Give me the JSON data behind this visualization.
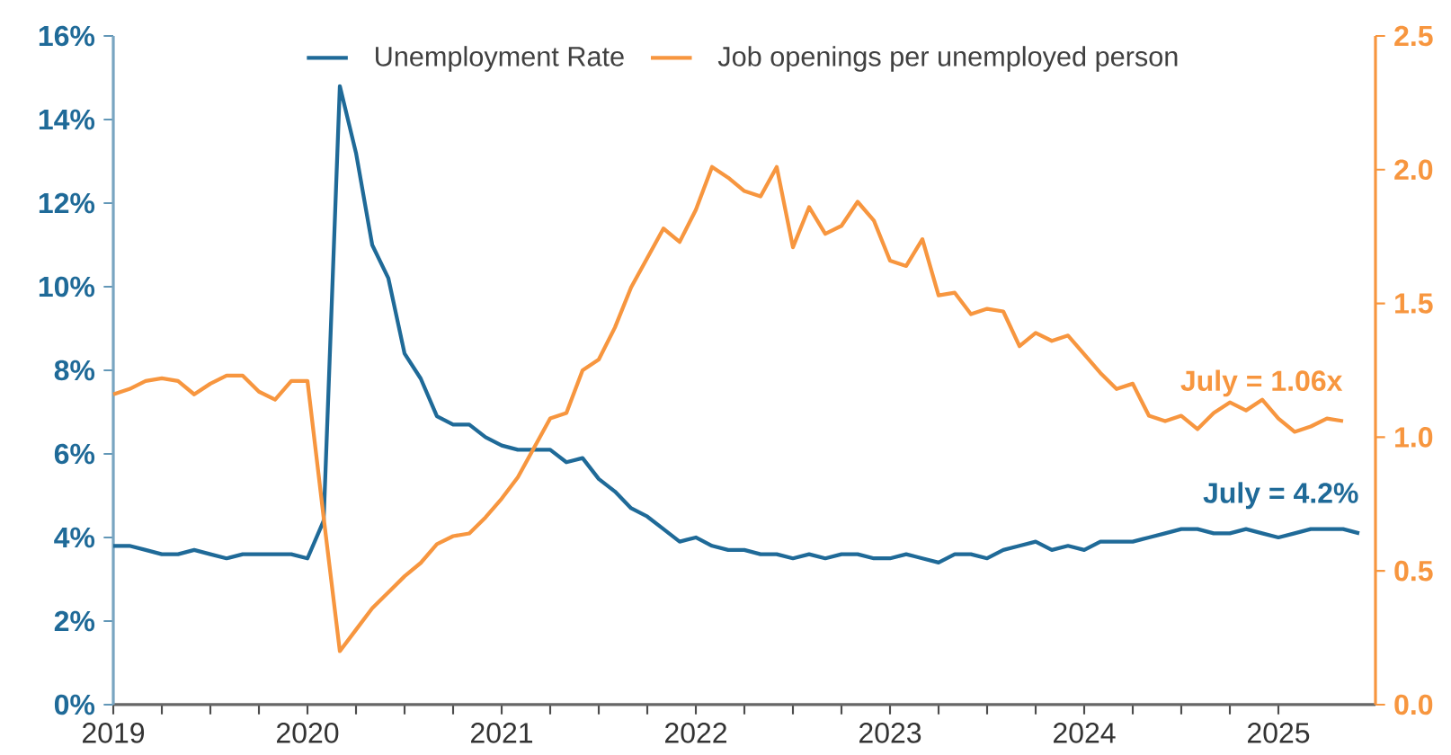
{
  "chart_data": {
    "type": "line",
    "legend": "top",
    "xlim": [
      "2019-01",
      "2025-07"
    ],
    "xticks": [
      "2019",
      "2020",
      "2021",
      "2022",
      "2023",
      "2024",
      "2025"
    ],
    "ylim": [
      0,
      16
    ],
    "yticks": [
      {
        "value": 0,
        "label": "0%"
      },
      {
        "value": 2,
        "label": "2%"
      },
      {
        "value": 4,
        "label": "4%"
      },
      {
        "value": 6,
        "label": "6%"
      },
      {
        "value": 8,
        "label": "8%"
      },
      {
        "value": 10,
        "label": "10%"
      },
      {
        "value": 12,
        "label": "12%"
      },
      {
        "value": 14,
        "label": "14%"
      },
      {
        "value": 16,
        "label": "16%"
      }
    ],
    "y2lim": [
      0,
      2.5
    ],
    "y2ticks": [
      {
        "value": 0,
        "label": "0.0"
      },
      {
        "value": 0.5,
        "label": "0.5"
      },
      {
        "value": 1,
        "label": "1.0"
      },
      {
        "value": 1.5,
        "label": "1.5"
      },
      {
        "value": 2,
        "label": "2.0"
      },
      {
        "value": 2.5,
        "label": "2.5"
      }
    ],
    "annotations": [
      "July = 4.2%",
      "July = 1.06x"
    ],
    "series": [
      {
        "name": "Unemployment Rate",
        "color": "#1f6a98",
        "x": [
          "2019-01",
          "2019-02",
          "2019-03",
          "2019-04",
          "2019-05",
          "2019-06",
          "2019-07",
          "2019-08",
          "2019-09",
          "2019-10",
          "2019-11",
          "2019-12",
          "2020-01",
          "2020-02",
          "2020-03",
          "2020-04",
          "2020-05",
          "2020-06",
          "2020-07",
          "2020-08",
          "2020-09",
          "2020-10",
          "2020-11",
          "2020-12",
          "2021-01",
          "2021-02",
          "2021-03",
          "2021-04",
          "2021-05",
          "2021-06",
          "2021-07",
          "2021-08",
          "2021-09",
          "2021-10",
          "2021-11",
          "2021-12",
          "2022-01",
          "2022-02",
          "2022-03",
          "2022-04",
          "2022-05",
          "2022-06",
          "2022-07",
          "2022-08",
          "2022-09",
          "2022-10",
          "2022-11",
          "2022-12",
          "2023-01",
          "2023-02",
          "2023-03",
          "2023-04",
          "2023-05",
          "2023-06",
          "2023-07",
          "2023-08",
          "2023-09",
          "2023-10",
          "2023-11",
          "2023-12",
          "2024-01",
          "2024-02",
          "2024-03",
          "2024-04",
          "2024-05",
          "2024-06",
          "2024-07",
          "2024-08",
          "2024-09",
          "2024-10",
          "2024-11",
          "2024-12",
          "2025-01",
          "2025-02",
          "2025-03",
          "2025-04",
          "2025-05",
          "2025-06"
        ],
        "values": [
          3.8,
          3.8,
          3.7,
          3.6,
          3.6,
          3.7,
          3.6,
          3.5,
          3.6,
          3.6,
          3.6,
          3.6,
          3.5,
          4.4,
          14.8,
          13.2,
          11.0,
          10.2,
          8.4,
          7.8,
          6.9,
          6.7,
          6.7,
          6.4,
          6.2,
          6.1,
          6.1,
          6.1,
          5.8,
          5.9,
          5.4,
          5.1,
          4.7,
          4.5,
          4.2,
          3.9,
          4.0,
          3.8,
          3.7,
          3.7,
          3.6,
          3.6,
          3.5,
          3.6,
          3.5,
          3.6,
          3.6,
          3.5,
          3.5,
          3.6,
          3.5,
          3.4,
          3.6,
          3.6,
          3.5,
          3.7,
          3.8,
          3.9,
          3.7,
          3.8,
          3.7,
          3.9,
          3.9,
          3.9,
          4.0,
          4.1,
          4.2,
          4.2,
          4.1,
          4.1,
          4.2,
          4.1,
          4.0,
          4.1,
          4.2,
          4.2,
          4.2,
          4.1
        ]
      },
      {
        "name": "Job openings per unemployed person",
        "color": "#f7963f",
        "axis": "y2",
        "x": [
          "2019-01",
          "2019-02",
          "2019-03",
          "2019-04",
          "2019-05",
          "2019-06",
          "2019-07",
          "2019-08",
          "2019-09",
          "2019-10",
          "2019-11",
          "2019-12",
          "2020-01",
          "2020-02",
          "2020-03",
          "2020-04",
          "2020-05",
          "2020-06",
          "2020-07",
          "2020-08",
          "2020-09",
          "2020-10",
          "2020-11",
          "2020-12",
          "2021-01",
          "2021-02",
          "2021-03",
          "2021-04",
          "2021-05",
          "2021-06",
          "2021-07",
          "2021-08",
          "2021-09",
          "2021-10",
          "2021-11",
          "2021-12",
          "2022-01",
          "2022-02",
          "2022-03",
          "2022-04",
          "2022-05",
          "2022-06",
          "2022-07",
          "2022-08",
          "2022-09",
          "2022-10",
          "2022-11",
          "2022-12",
          "2023-01",
          "2023-02",
          "2023-03",
          "2023-04",
          "2023-05",
          "2023-06",
          "2023-07",
          "2023-08",
          "2023-09",
          "2023-10",
          "2023-11",
          "2023-12",
          "2024-01",
          "2024-02",
          "2024-03",
          "2024-04",
          "2024-05",
          "2024-06",
          "2024-07",
          "2024-08",
          "2024-09",
          "2024-10",
          "2024-11",
          "2024-12",
          "2025-01",
          "2025-02",
          "2025-03",
          "2025-04",
          "2025-05"
        ],
        "values": [
          1.16,
          1.18,
          1.21,
          1.22,
          1.21,
          1.16,
          1.2,
          1.23,
          1.23,
          1.17,
          1.14,
          1.21,
          1.21,
          0.7,
          0.2,
          0.28,
          0.36,
          0.42,
          0.48,
          0.53,
          0.6,
          0.63,
          0.64,
          0.7,
          0.77,
          0.85,
          0.96,
          1.07,
          1.09,
          1.25,
          1.29,
          1.41,
          1.56,
          1.67,
          1.78,
          1.73,
          1.85,
          2.01,
          1.97,
          1.92,
          1.9,
          2.01,
          1.71,
          1.86,
          1.76,
          1.79,
          1.88,
          1.81,
          1.66,
          1.64,
          1.74,
          1.53,
          1.54,
          1.46,
          1.48,
          1.47,
          1.34,
          1.39,
          1.36,
          1.38,
          1.31,
          1.24,
          1.18,
          1.2,
          1.08,
          1.06,
          1.08,
          1.03,
          1.09,
          1.13,
          1.1,
          1.14,
          1.07,
          1.02,
          1.04,
          1.07,
          1.06
        ]
      }
    ]
  }
}
